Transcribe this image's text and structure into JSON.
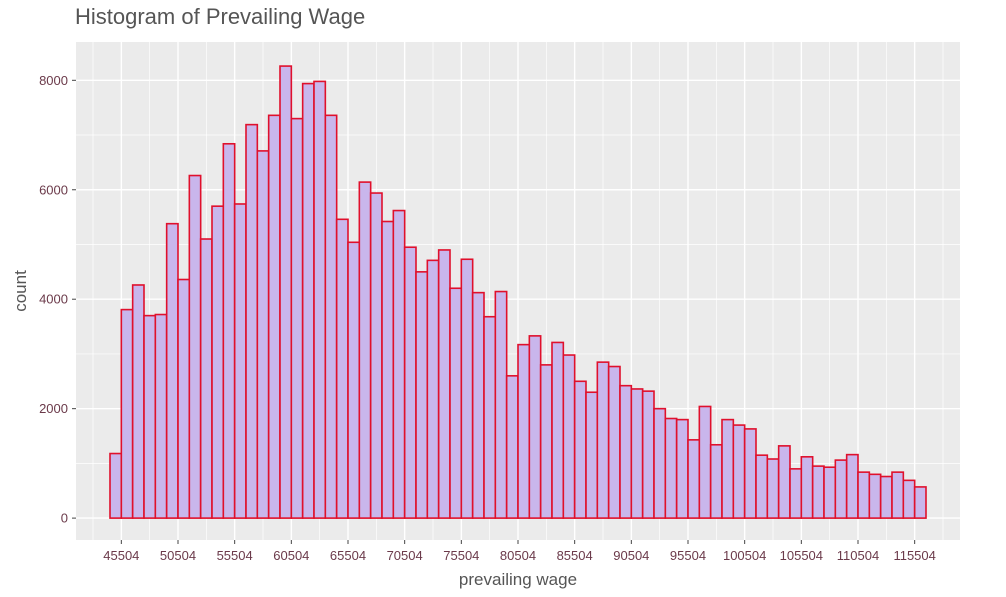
{
  "chart_data": {
    "type": "bar",
    "title": "Histogram of Prevailing Wage",
    "xlabel": "prevailing wage",
    "ylabel": "count",
    "x_ticks": [
      "45504",
      "50504",
      "55504",
      "60504",
      "65504",
      "70504",
      "75504",
      "80504",
      "85504",
      "90504",
      "95504",
      "100504",
      "105504",
      "110504",
      "115504"
    ],
    "y_ticks": [
      "0",
      "2000",
      "4000",
      "6000",
      "8000"
    ],
    "xlim": [
      41504,
      119504
    ],
    "ylim": [
      -400,
      8700
    ],
    "bin_start": 44504,
    "bin_width": 1000,
    "values": [
      1180,
      3810,
      4260,
      3700,
      3720,
      5380,
      4360,
      6260,
      5100,
      5700,
      6840,
      5740,
      7190,
      6710,
      7360,
      8260,
      7300,
      7940,
      7980,
      7360,
      5460,
      5040,
      6140,
      5940,
      5420,
      5620,
      4950,
      4500,
      4710,
      4900,
      4200,
      4730,
      4120,
      3680,
      4140,
      2600,
      3170,
      3330,
      2800,
      3210,
      2980,
      2500,
      2300,
      2850,
      2770,
      2420,
      2360,
      2320,
      2000,
      1820,
      1800,
      1430,
      2040,
      1340,
      1800,
      1700,
      1630,
      1150,
      1080,
      1320,
      900,
      1120,
      950,
      930,
      1060,
      1160,
      840,
      800,
      760,
      840,
      690,
      570
    ],
    "grid": true,
    "legend": "none",
    "colors": {
      "fill": "#c9b6ec",
      "stroke": "#e0102c",
      "panel": "#ebebeb",
      "grid": "#ffffff"
    }
  }
}
